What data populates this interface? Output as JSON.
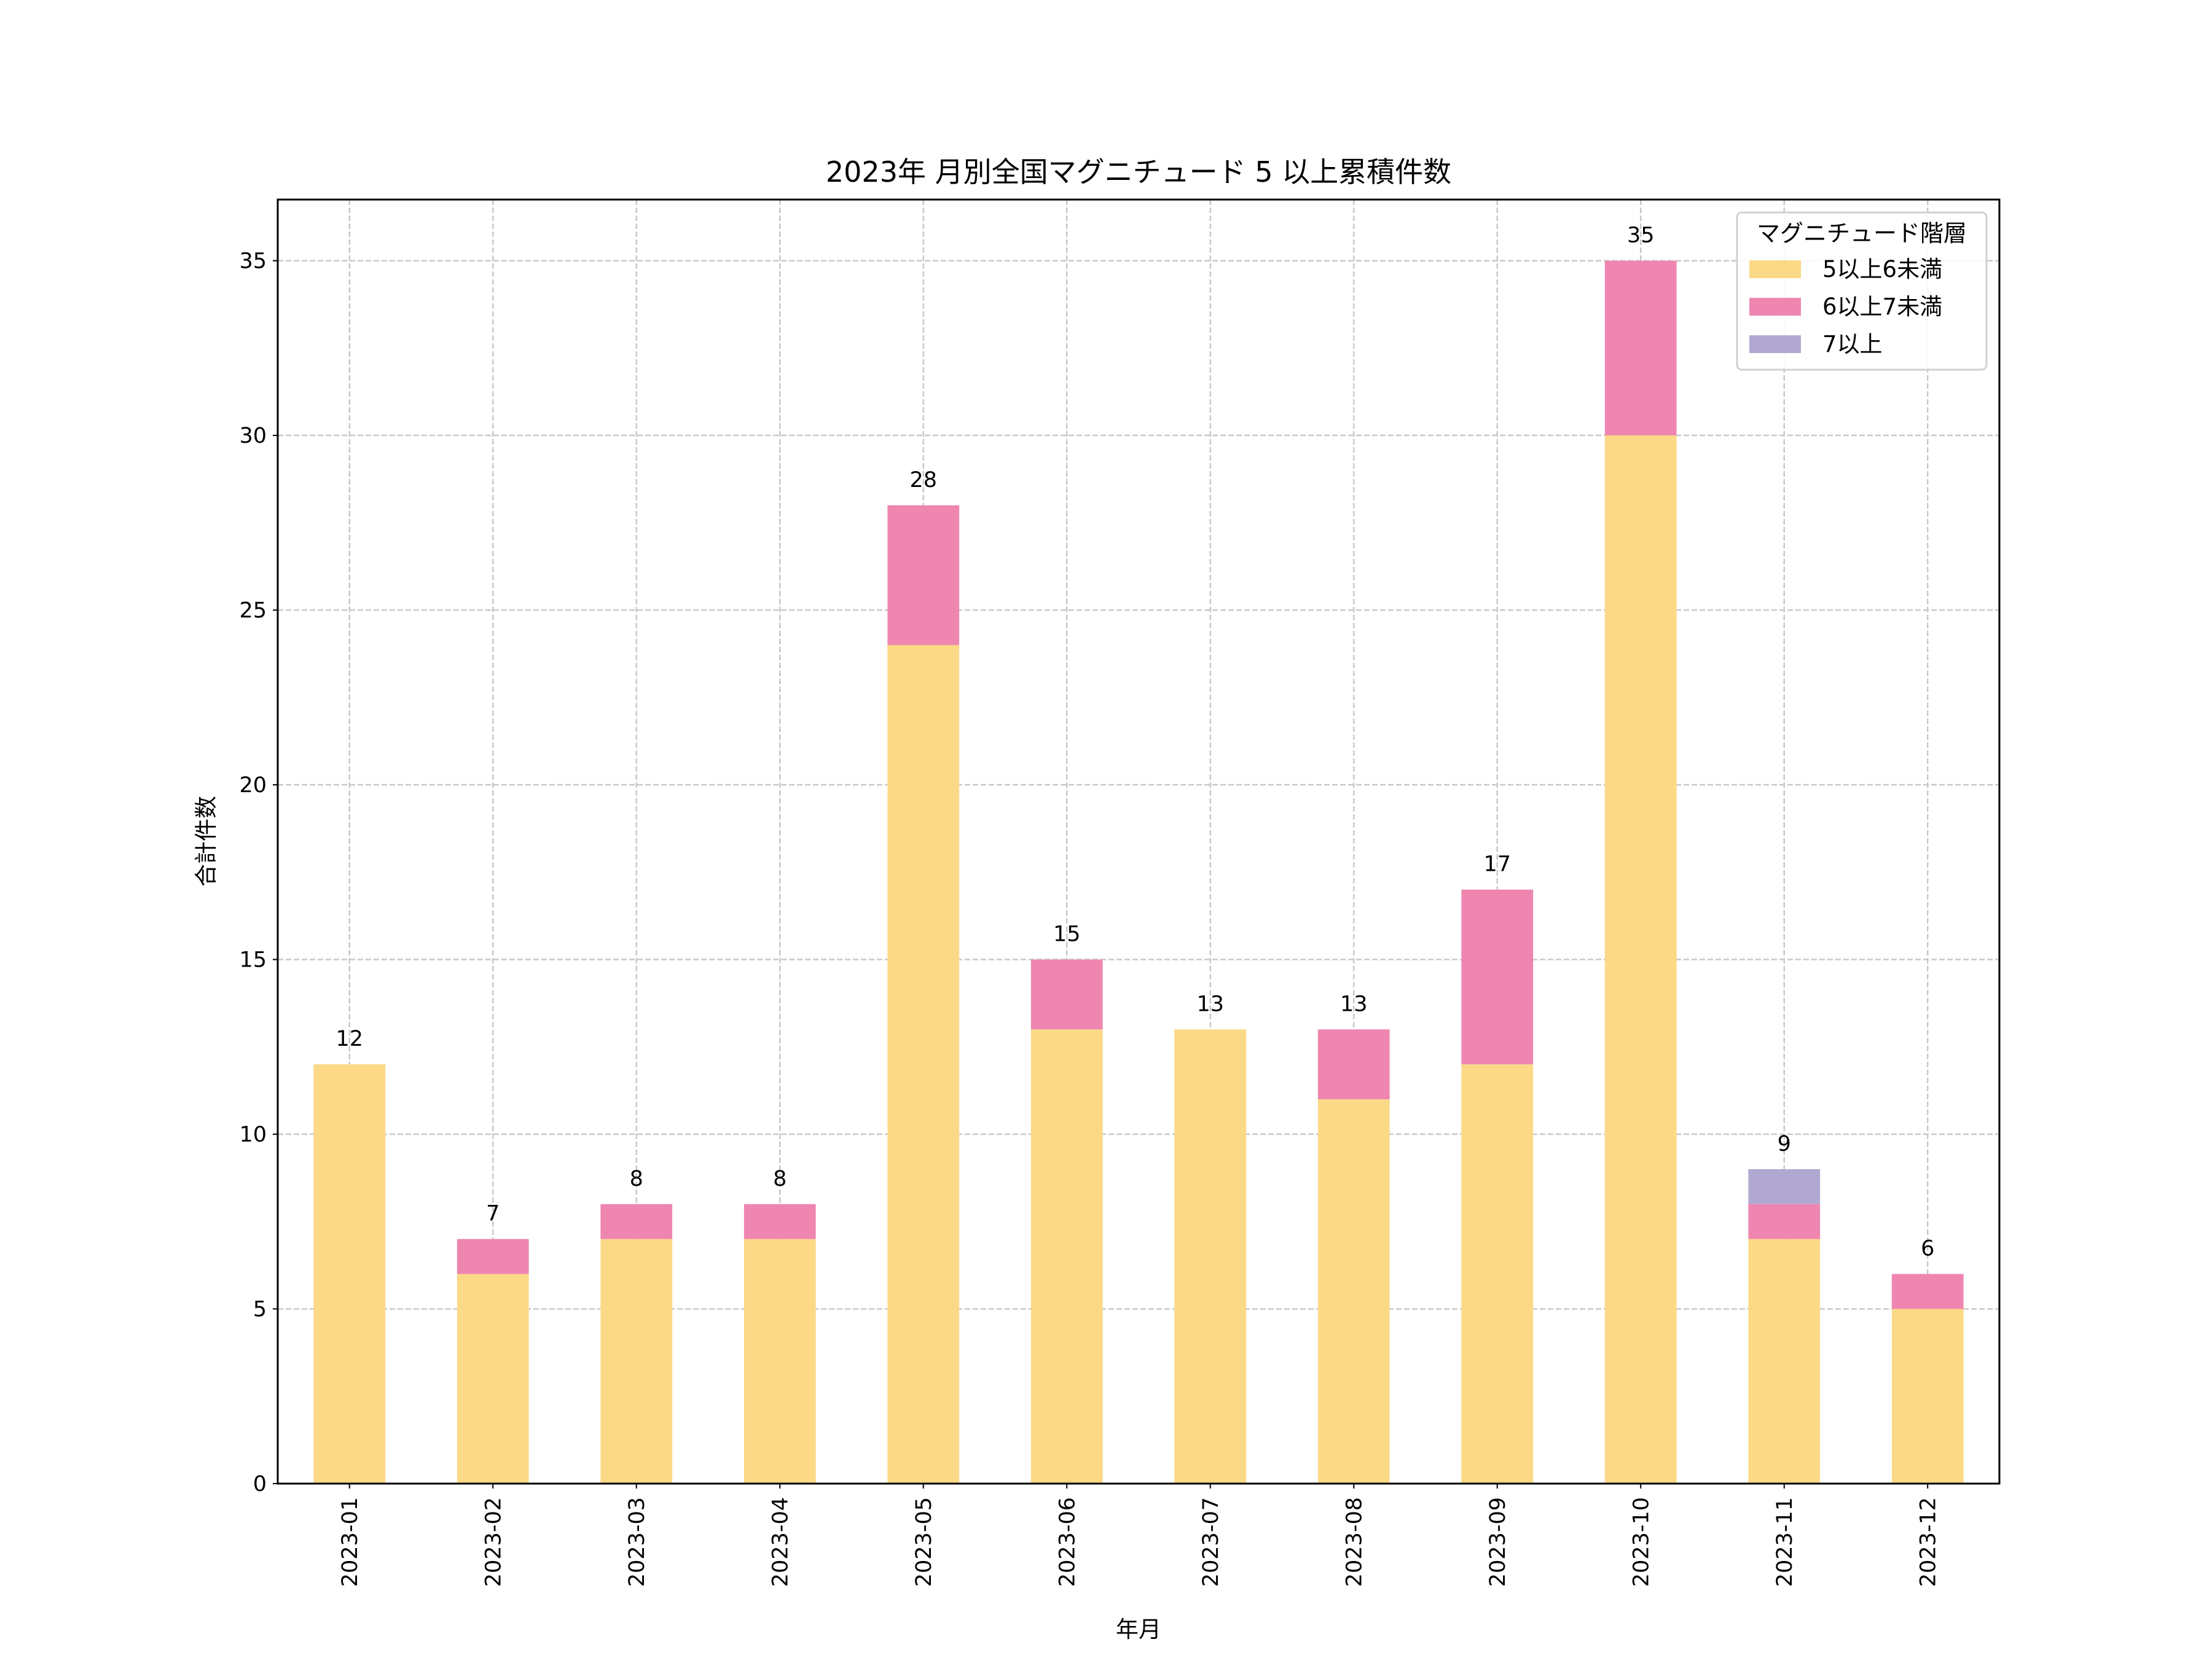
{
  "chart_data": {
    "type": "bar",
    "stacked": true,
    "title": "2023年 月別全国マグニチュード 5 以上累積件数",
    "xlabel": "年月",
    "ylabel": "合計件数",
    "categories": [
      "2023-01",
      "2023-02",
      "2023-03",
      "2023-04",
      "2023-05",
      "2023-06",
      "2023-07",
      "2023-08",
      "2023-09",
      "2023-10",
      "2023-11",
      "2023-12"
    ],
    "series": [
      {
        "name": "5以上6未満",
        "color": "#fbd986",
        "values": [
          12,
          6,
          7,
          7,
          24,
          13,
          13,
          11,
          12,
          30,
          7,
          5
        ]
      },
      {
        "name": "6以上7未満",
        "color": "#ee86b0",
        "values": [
          0,
          1,
          1,
          1,
          4,
          2,
          0,
          2,
          5,
          5,
          1,
          1
        ]
      },
      {
        "name": "7以上",
        "color": "#b1a8d2",
        "values": [
          0,
          0,
          0,
          0,
          0,
          0,
          0,
          0,
          0,
          0,
          1,
          0
        ]
      }
    ],
    "totals": [
      "12",
      "7",
      "8",
      "8",
      "28",
      "15",
      "13",
      "13",
      "17",
      "35",
      "9",
      "6"
    ],
    "ylim": [
      0,
      36.75
    ],
    "yticks": [
      "0",
      "5",
      "10",
      "15",
      "20",
      "25",
      "30",
      "35"
    ],
    "grid": true,
    "legend": {
      "title": "マグニチュード階層",
      "placement": "top-right"
    }
  }
}
